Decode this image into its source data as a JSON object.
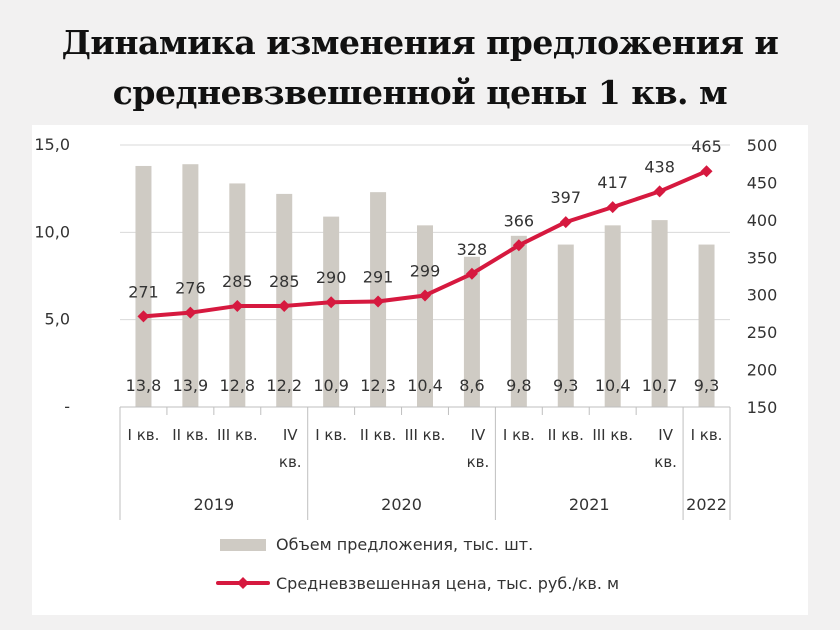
{
  "page": {
    "title_line1": "Динамика изменения предложения и",
    "title_line2": "средневзвешенной цены 1 кв. м"
  },
  "chart_data": {
    "type": "bar+line",
    "categories": [
      "I кв.",
      "II кв.",
      "III кв.",
      "IV кв.",
      "I кв.",
      "II кв.",
      "III кв.",
      "IV кв.",
      "I кв.",
      "II кв.",
      "III кв.",
      "IV кв.",
      "I кв."
    ],
    "groups": [
      {
        "label": "2019",
        "count": 4
      },
      {
        "label": "2020",
        "count": 4
      },
      {
        "label": "2021",
        "count": 4
      },
      {
        "label": "2022",
        "count": 1
      }
    ],
    "series": [
      {
        "name": "Объем предложения, тыс. шт.",
        "type": "bar",
        "axis": "left",
        "values": [
          13.8,
          13.9,
          12.8,
          12.2,
          10.9,
          12.3,
          10.4,
          8.6,
          9.8,
          9.3,
          10.4,
          10.7,
          9.3
        ],
        "labels": [
          "13,8",
          "13,9",
          "12,8",
          "12,2",
          "10,9",
          "12,3",
          "10,4",
          "8,6",
          "9,8",
          "9,3",
          "10,4",
          "10,7",
          "9,3"
        ],
        "color": "#cfcbc4"
      },
      {
        "name": "Средневзвешенная цена, тыс. руб./кв. м",
        "type": "line",
        "axis": "right",
        "values": [
          271,
          276,
          285,
          285,
          290,
          291,
          299,
          328,
          366,
          397,
          417,
          438,
          465
        ],
        "labels": [
          "271",
          "276",
          "285",
          "285",
          "290",
          "291",
          "299",
          "328",
          "366",
          "397",
          "417",
          "438",
          "465"
        ],
        "color": "#d6193f"
      }
    ],
    "y_left": {
      "ylim": [
        0,
        15
      ],
      "ticks": [
        "-",
        "5,0",
        "10,0",
        "15,0"
      ],
      "tick_values": [
        0,
        5,
        10,
        15
      ]
    },
    "y_right": {
      "ylim": [
        150,
        500
      ],
      "ticks": [
        "150",
        "200",
        "250",
        "300",
        "350",
        "400",
        "450",
        "500"
      ],
      "tick_values": [
        150,
        200,
        250,
        300,
        350,
        400,
        450,
        500
      ]
    },
    "grid": true,
    "legend": "bottom"
  }
}
